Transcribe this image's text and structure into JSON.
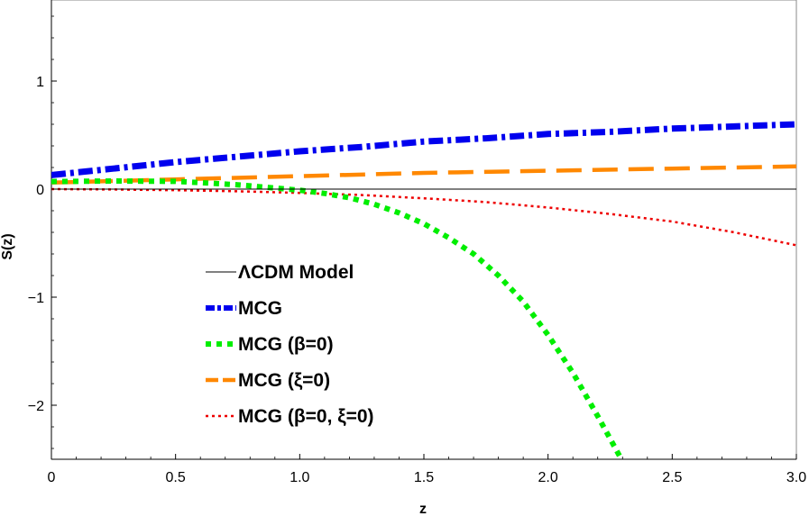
{
  "chart_data": {
    "type": "line",
    "title": "",
    "xlabel": "z",
    "ylabel": "S(z)",
    "xlim": [
      0,
      3.0
    ],
    "ylim": [
      -2.5,
      1.75
    ],
    "grid": false,
    "legend_position": "bottom-left",
    "x_ticks": [
      0,
      0.5,
      1.0,
      1.5,
      2.0,
      2.5,
      3.0
    ],
    "x_tick_labels": [
      "0",
      "0.5",
      "1.0",
      "1.5",
      "2.0",
      "2.5",
      "3.0"
    ],
    "y_ticks": [
      1,
      0,
      -1,
      -2
    ],
    "y_tick_labels": [
      "1",
      "0",
      "−1",
      "−2"
    ],
    "series": [
      {
        "name": "ΛCDM Model",
        "color": "#000000",
        "style": "solid-thin",
        "x": [
          0,
          3.0
        ],
        "y": [
          0,
          0
        ]
      },
      {
        "name": "MCG",
        "color": "#0000ee",
        "style": "dash-dot-thick",
        "x": [
          0,
          0.25,
          0.5,
          0.75,
          1.0,
          1.25,
          1.5,
          1.75,
          2.0,
          2.25,
          2.5,
          2.75,
          3.0
        ],
        "y": [
          0.13,
          0.19,
          0.25,
          0.3,
          0.35,
          0.39,
          0.44,
          0.47,
          0.51,
          0.53,
          0.56,
          0.58,
          0.6
        ]
      },
      {
        "name": "MCG (β=0)",
        "color": "#00ee00",
        "style": "dotted-thick",
        "x": [
          0,
          0.25,
          0.5,
          0.6,
          0.75,
          0.9,
          1.0,
          1.1,
          1.2,
          1.3,
          1.4,
          1.5,
          1.6,
          1.7,
          1.8,
          1.9,
          2.0,
          2.1,
          2.2,
          2.3
        ],
        "y": [
          0.07,
          0.075,
          0.072,
          0.06,
          0.04,
          0.01,
          -0.01,
          -0.04,
          -0.08,
          -0.14,
          -0.22,
          -0.32,
          -0.45,
          -0.6,
          -0.8,
          -1.04,
          -1.35,
          -1.7,
          -2.1,
          -2.52
        ]
      },
      {
        "name": "MCG (ξ=0)",
        "color": "#ff8800",
        "style": "dashed-thick",
        "x": [
          0,
          0.5,
          1.0,
          1.5,
          2.0,
          2.5,
          3.0
        ],
        "y": [
          0.06,
          0.09,
          0.12,
          0.15,
          0.17,
          0.19,
          0.21
        ]
      },
      {
        "name": "MCG (β=0, ξ=0)",
        "color": "#ee0000",
        "style": "dotted",
        "x": [
          0,
          0.25,
          0.5,
          0.75,
          1.0,
          1.25,
          1.5,
          1.75,
          2.0,
          2.25,
          2.5,
          2.75,
          3.0
        ],
        "y": [
          0,
          -0.003,
          -0.01,
          -0.02,
          -0.035,
          -0.055,
          -0.085,
          -0.12,
          -0.17,
          -0.23,
          -0.3,
          -0.4,
          -0.52
        ]
      }
    ]
  }
}
